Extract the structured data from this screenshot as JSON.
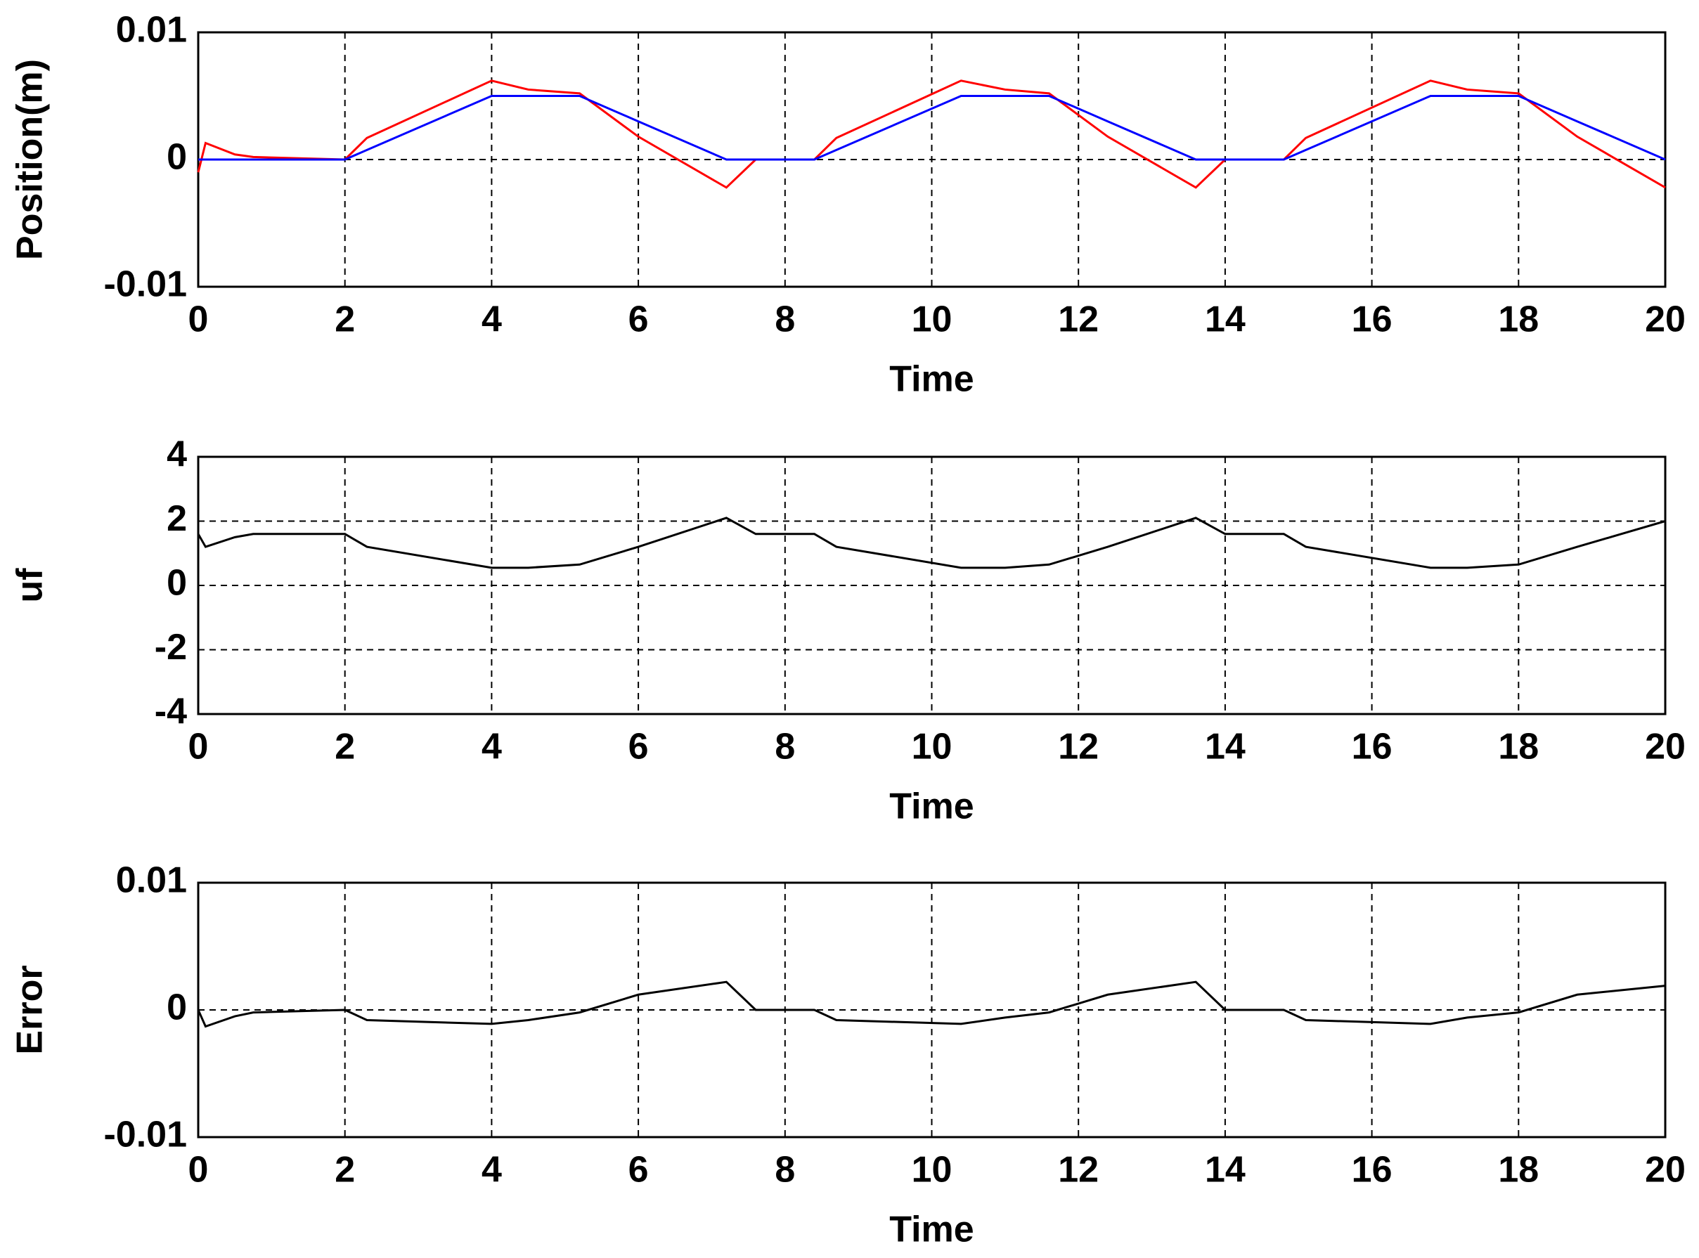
{
  "chart_data": [
    {
      "type": "line",
      "xlabel": "Time",
      "ylabel": "Position(m)",
      "x": [
        0,
        0.1,
        0.5,
        0.75,
        2,
        2.3,
        4,
        4.5,
        5.2,
        6,
        7.2,
        7.6,
        8.4,
        8.7,
        10.4,
        11,
        11.6,
        12.4,
        13.6,
        14,
        14.8,
        15.1,
        16.8,
        17.3,
        18,
        18.8,
        20
      ],
      "series": [
        {
          "color": "#ff0000",
          "values": [
            -0.001,
            0.0013,
            0.0004,
            0.0002,
            0,
            0.0017,
            0.0062,
            0.0055,
            0.0052,
            0.0018,
            -0.0022,
            0,
            0,
            0.0017,
            0.0062,
            0.0055,
            0.0052,
            0.0018,
            -0.0022,
            0,
            0,
            0.0017,
            0.0062,
            0.0055,
            0.0052,
            0.0018,
            -0.0022
          ]
        },
        {
          "color": "#0000ff",
          "values": [
            0,
            0,
            0,
            0,
            0,
            0.00075,
            0.005,
            0.005,
            0.005,
            0.003,
            0,
            0,
            0,
            0.00075,
            0.005,
            0.005,
            0.005,
            0.003,
            0,
            0,
            0,
            0.00075,
            0.005,
            0.005,
            0.005,
            0.003,
            0
          ]
        }
      ],
      "xlim": [
        0,
        20
      ],
      "xticks": [
        0,
        2,
        4,
        6,
        8,
        10,
        12,
        14,
        16,
        18,
        20
      ],
      "ylim": [
        -0.01,
        0.01
      ],
      "yticks": [
        -0.01,
        0,
        0.01
      ],
      "grid": true
    },
    {
      "type": "line",
      "xlabel": "Time",
      "ylabel": "uf",
      "x": [
        0,
        0.1,
        0.5,
        0.75,
        2,
        2.3,
        4,
        4.5,
        5.2,
        6,
        7.2,
        7.6,
        8.4,
        8.7,
        10.4,
        11,
        11.6,
        12.4,
        13.6,
        14,
        14.8,
        15.1,
        16.8,
        17.3,
        18,
        18.8,
        20
      ],
      "series": [
        {
          "color": "#000000",
          "values": [
            1.6,
            1.2,
            1.5,
            1.6,
            1.6,
            1.2,
            0.55,
            0.55,
            0.65,
            1.2,
            2.1,
            1.6,
            1.6,
            1.2,
            0.55,
            0.55,
            0.65,
            1.2,
            2.1,
            1.6,
            1.6,
            1.2,
            0.55,
            0.55,
            0.65,
            1.2,
            2.0
          ]
        }
      ],
      "xlim": [
        0,
        20
      ],
      "xticks": [
        0,
        2,
        4,
        6,
        8,
        10,
        12,
        14,
        16,
        18,
        20
      ],
      "ylim": [
        -4,
        4
      ],
      "yticks": [
        -4,
        -2,
        0,
        2,
        4
      ],
      "grid": true
    },
    {
      "type": "line",
      "xlabel": "Time",
      "ylabel": "Error",
      "x": [
        0,
        0.1,
        0.5,
        0.75,
        2,
        2.3,
        4,
        4.5,
        5.2,
        6,
        7.2,
        7.6,
        8.4,
        8.7,
        10.4,
        11,
        11.6,
        12.4,
        13.6,
        14,
        14.8,
        15.1,
        16.8,
        17.3,
        18,
        18.8,
        20
      ],
      "series": [
        {
          "color": "#000000",
          "values": [
            0,
            -0.0013,
            -0.0005,
            -0.0002,
            0,
            -0.0008,
            -0.0011,
            -0.0008,
            -0.0002,
            0.0012,
            0.0022,
            0,
            0,
            -0.0008,
            -0.0011,
            -0.0006,
            -0.0002,
            0.0012,
            0.0022,
            0,
            0,
            -0.0008,
            -0.0011,
            -0.0006,
            -0.0002,
            0.0012,
            0.0019
          ]
        }
      ],
      "xlim": [
        0,
        20
      ],
      "xticks": [
        0,
        2,
        4,
        6,
        8,
        10,
        12,
        14,
        16,
        18,
        20
      ],
      "ylim": [
        -0.01,
        0.01
      ],
      "yticks": [
        -0.01,
        0,
        0.01
      ],
      "grid": true
    }
  ]
}
